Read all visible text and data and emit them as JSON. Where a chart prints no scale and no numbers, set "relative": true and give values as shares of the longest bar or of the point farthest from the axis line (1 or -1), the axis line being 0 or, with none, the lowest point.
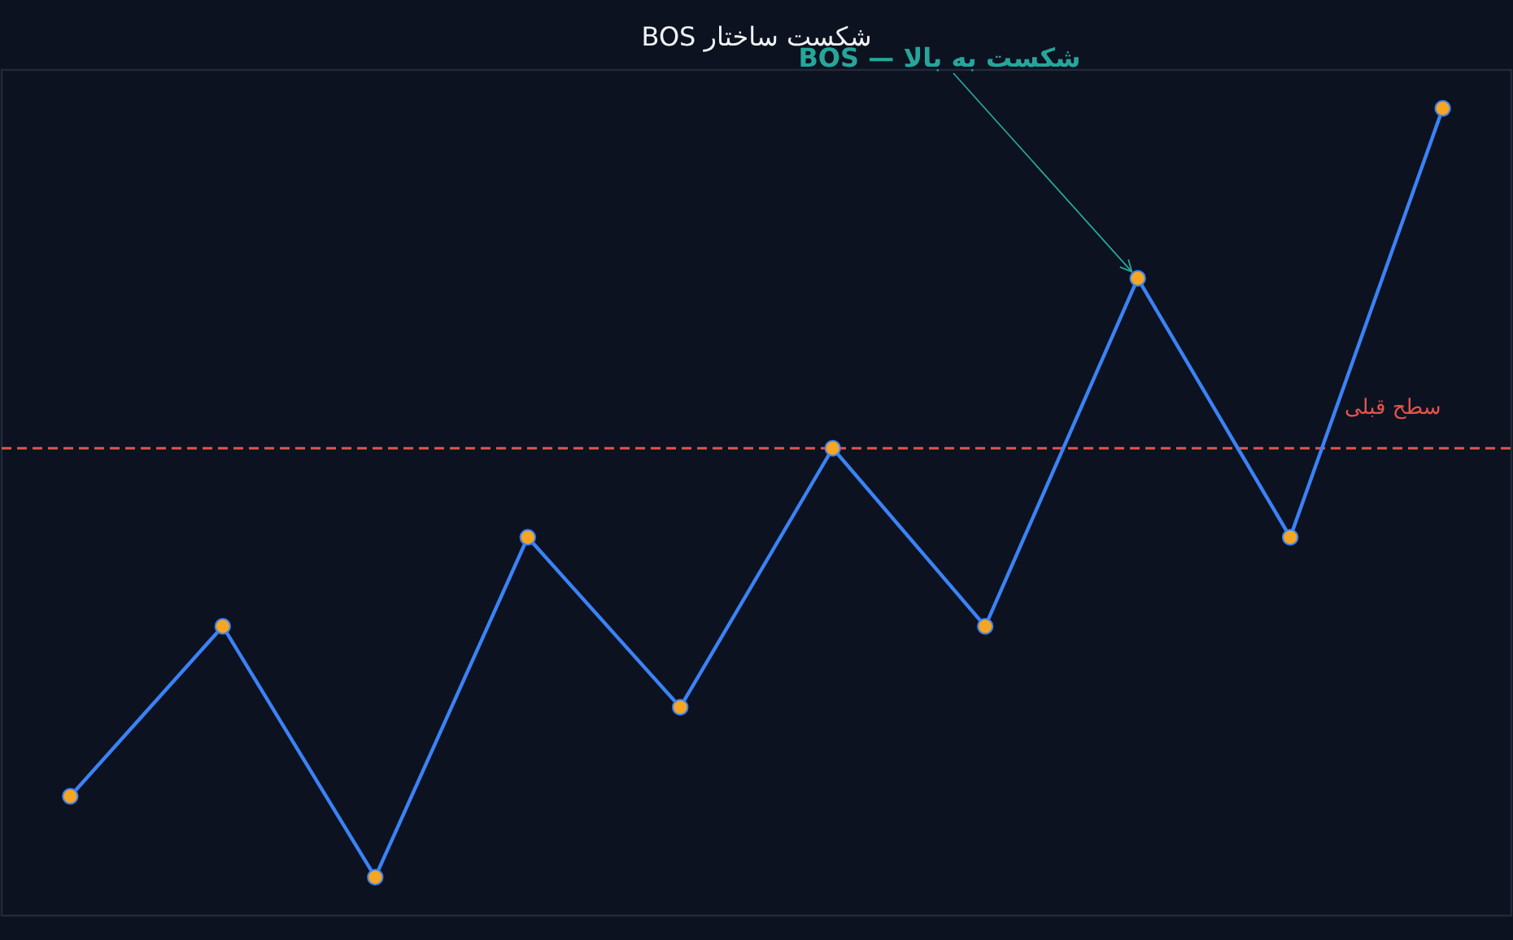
{
  "chart_data": {
    "type": "line",
    "title": "شکست ساختار BOS",
    "relative": true,
    "marker": "circle",
    "categories": [
      null,
      null,
      null,
      null,
      null,
      null,
      null,
      null,
      null,
      null
    ],
    "series": [
      {
        "color": "#3b82f6",
        "line_style": "solid",
        "colors": [
          "#f5a623",
          "#f5a623",
          "#f5a623",
          "#f5a623",
          "#f5a623",
          "#f5a623",
          "#f5a623",
          "#f5a623",
          "#f5a623",
          "#f5a623"
        ],
        "values": [
          0.15,
          0.36,
          0.05,
          0.47,
          0.26,
          0.58,
          0.36,
          0.79,
          0.47,
          1
        ]
      }
    ],
    "ref_lines": [
      {
        "axis": "y",
        "value": 0.58,
        "label": "سطح قبلی",
        "color": "#e5534b",
        "line_style": "dashed"
      }
    ],
    "annotations": [
      "BOS — شکست به بالا"
    ]
  }
}
